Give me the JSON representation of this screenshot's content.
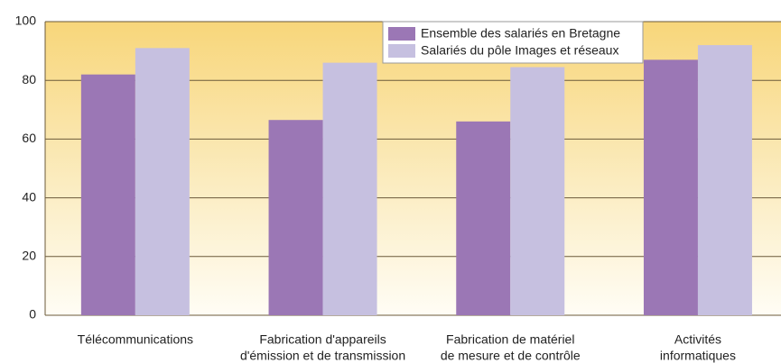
{
  "chart_data": {
    "type": "bar",
    "categories": [
      [
        "Télécommunications"
      ],
      [
        "Fabrication d'appareils",
        "d'émission et de transmission"
      ],
      [
        "Fabrication de matériel",
        "de mesure et de contrôle"
      ],
      [
        "Activités",
        "informatiques"
      ]
    ],
    "series": [
      {
        "name": "Ensemble des salariés en Bretagne",
        "color": "#9b77b5",
        "values": [
          82,
          66.5,
          66,
          87
        ]
      },
      {
        "name": "Salariés du pôle Images et réseaux",
        "color": "#c6c0e0",
        "values": [
          91,
          86,
          84.5,
          92
        ]
      }
    ],
    "ylim": [
      0,
      100
    ],
    "yticks": [
      0,
      20,
      40,
      60,
      80,
      100
    ],
    "grid": true,
    "legend": "top"
  }
}
